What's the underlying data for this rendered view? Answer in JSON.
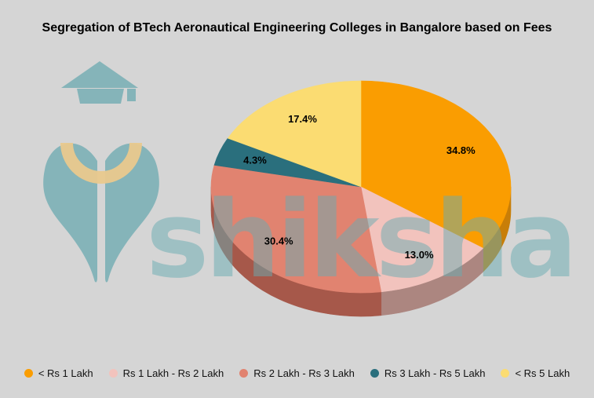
{
  "page": {
    "background": "#D5D5D5"
  },
  "header": {
    "title": "Segregation of BTech Aeronautical Engineering Colleges in Bangalore based on Fees"
  },
  "watermark": {
    "text": "shiksha",
    "logo_icon": "shiksha-graduation-cap-pen-nib-logo",
    "text_color": "#67ACB2",
    "logo_color": "#67A8AF",
    "logo_accent_color": "#E9C98D"
  },
  "chart_data": {
    "type": "pie",
    "style": "3d",
    "title": "Segregation of BTech Aeronautical Engineering Colleges in Bangalore based on Fees",
    "unit": "%",
    "start_angle_deg": 0,
    "direction": "clockwise",
    "legend_position": "bottom",
    "slices": [
      {
        "label": "< Rs 1 Lakh",
        "value": 34.8,
        "pct_label": "34.8%",
        "color": "#FA9D01",
        "rim_color": "#C87E08"
      },
      {
        "label": "Rs 1 Lakh - Rs 2 Lakh",
        "value": 13.0,
        "pct_label": "13.0%",
        "color": "#F2C3BD",
        "rim_color": "#AC8680"
      },
      {
        "label": "Rs 2 Lakh - Rs 3 Lakh",
        "value": 30.4,
        "pct_label": "30.4%",
        "color": "#E18370",
        "rim_color": "#A6584A"
      },
      {
        "label": "Rs 3 Lakh - Rs 5 Lakh",
        "value": 4.3,
        "pct_label": "4.3%",
        "color": "#2A6F7D",
        "rim_color": "#1C4F5A"
      },
      {
        "label": "< Rs 5 Lakh",
        "value": 17.4,
        "pct_label": "17.4%",
        "color": "#FBDC72",
        "rim_color": "#C3A94F"
      }
    ]
  }
}
